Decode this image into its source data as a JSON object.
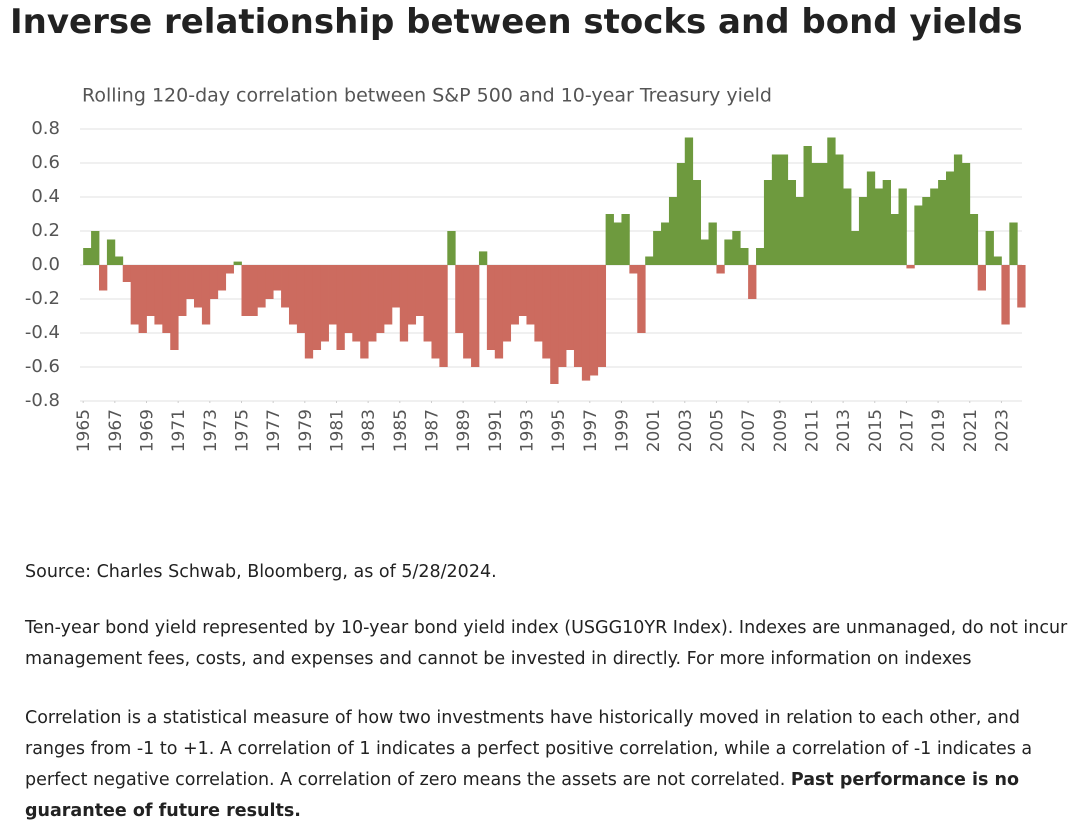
{
  "chart_data": {
    "type": "area",
    "title": "Inverse relationship between stocks and bond yields",
    "subtitle": "Rolling 120-day correlation between S&P 500 and 10-year Treasury yield",
    "positive_color": "#6e9a3e",
    "negative_color": "#cc6b5f",
    "grid": true,
    "xlim": [
      1964.8,
      2024.3
    ],
    "xticks": [
      1965,
      1967,
      1969,
      1971,
      1973,
      1975,
      1977,
      1979,
      1981,
      1983,
      1985,
      1987,
      1989,
      1991,
      1993,
      1995,
      1997,
      1999,
      2001,
      2003,
      2005,
      2007,
      2009,
      2011,
      2013,
      2015,
      2017,
      2019,
      2021,
      2023
    ],
    "ylim": [
      -0.8,
      0.8
    ],
    "yticks": [
      0.8,
      0.6,
      0.4,
      0.2,
      {
        "value": 0,
        "label": "0.0"
      },
      -0.2,
      -0.4,
      -0.6,
      -0.8
    ],
    "x": [
      1965,
      1965.5,
      1966,
      1966.5,
      1967,
      1967.5,
      1968,
      1968.5,
      1969,
      1969.5,
      1970,
      1970.5,
      1971,
      1971.5,
      1972,
      1972.5,
      1973,
      1973.5,
      1974,
      1974.5,
      1975,
      1975.5,
      1976,
      1976.5,
      1977,
      1977.5,
      1978,
      1978.5,
      1979,
      1979.5,
      1980,
      1980.5,
      1981,
      1981.5,
      1982,
      1982.5,
      1983,
      1983.5,
      1984,
      1984.5,
      1985,
      1985.5,
      1986,
      1986.5,
      1987,
      1987.5,
      1988,
      1988.5,
      1989,
      1989.5,
      1990,
      1990.5,
      1991,
      1991.5,
      1992,
      1992.5,
      1993,
      1993.5,
      1994,
      1994.5,
      1995,
      1995.5,
      1996,
      1996.5,
      1997,
      1997.5,
      1998,
      1998.5,
      1999,
      1999.5,
      2000,
      2000.5,
      2001,
      2001.5,
      2002,
      2002.5,
      2003,
      2003.5,
      2004,
      2004.5,
      2005,
      2005.5,
      2006,
      2006.5,
      2007,
      2007.5,
      2008,
      2008.5,
      2009,
      2009.5,
      2010,
      2010.5,
      2011,
      2011.5,
      2012,
      2012.5,
      2013,
      2013.5,
      2014,
      2014.5,
      2015,
      2015.5,
      2016,
      2016.5,
      2017,
      2017.5,
      2018,
      2018.5,
      2019,
      2019.5,
      2020,
      2020.5,
      2021,
      2021.5,
      2022,
      2022.5,
      2023,
      2023.5,
      2024
    ],
    "values": [
      0.1,
      0.2,
      -0.15,
      0.15,
      0.05,
      -0.1,
      -0.35,
      -0.4,
      -0.3,
      -0.35,
      -0.4,
      -0.5,
      -0.3,
      -0.2,
      -0.25,
      -0.35,
      -0.2,
      -0.15,
      -0.05,
      0.02,
      -0.3,
      -0.3,
      -0.25,
      -0.2,
      -0.15,
      -0.25,
      -0.35,
      -0.4,
      -0.55,
      -0.5,
      -0.45,
      -0.35,
      -0.5,
      -0.4,
      -0.45,
      -0.55,
      -0.45,
      -0.4,
      -0.35,
      -0.25,
      -0.45,
      -0.35,
      -0.3,
      -0.45,
      -0.55,
      -0.6,
      0.2,
      -0.4,
      -0.55,
      -0.6,
      0.08,
      -0.5,
      -0.55,
      -0.45,
      -0.35,
      -0.3,
      -0.35,
      -0.45,
      -0.55,
      -0.7,
      -0.6,
      -0.5,
      -0.6,
      -0.68,
      -0.65,
      -0.6,
      0.3,
      0.25,
      0.3,
      -0.05,
      -0.4,
      0.05,
      0.2,
      0.25,
      0.4,
      0.6,
      0.75,
      0.5,
      0.15,
      0.25,
      -0.05,
      0.15,
      0.2,
      0.1,
      -0.2,
      0.1,
      0.5,
      0.65,
      0.65,
      0.5,
      0.4,
      0.7,
      0.6,
      0.6,
      0.75,
      0.65,
      0.45,
      0.2,
      0.4,
      0.55,
      0.45,
      0.5,
      0.3,
      0.45,
      -0.02,
      0.35,
      0.4,
      0.45,
      0.5,
      0.55,
      0.65,
      0.6,
      0.3,
      -0.15,
      0.2,
      0.05,
      -0.35,
      0.25,
      -0.25
    ]
  },
  "notes": {
    "source": "Source: Charles Schwab, Bloomberg, as of 5/28/2024.",
    "index_note": "Ten-year bond yield represented by 10-year bond yield index (USGG10YR Index).  Indexes are unmanaged, do not incur management fees, costs, and expenses and cannot be invested in directly. For more information on indexes",
    "correlation_note": "Correlation is a statistical measure of how two investments have historically moved in relation to each other, and ranges from -1 to +1. A correlation of 1 indicates a perfect positive correlation, while a correlation of -1 indicates a perfect negative correlation. A correlation of zero means the assets are not correlated.",
    "disclaimer": "Past performance is no guarantee of future results."
  }
}
